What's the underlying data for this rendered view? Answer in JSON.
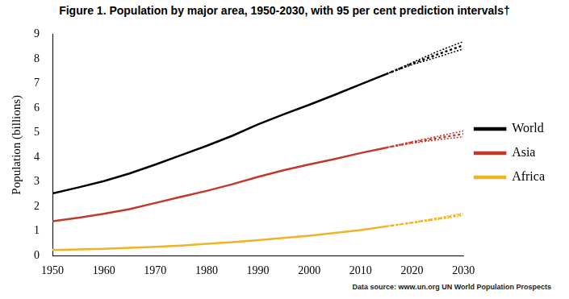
{
  "chart_data": {
    "type": "line",
    "title": "Figure 1. Population by major area, 1950-2030, with 95 per cent prediction intervals†",
    "y_label": "Population (billions)",
    "annotation": "Data source: www.un.org UN World Population Prospects",
    "x": [
      1950,
      1955,
      1960,
      1965,
      1970,
      1975,
      1980,
      1985,
      1990,
      1995,
      2000,
      2005,
      2010,
      2015,
      2020,
      2025,
      2030
    ],
    "series": [
      {
        "name": "World",
        "color": "#000000",
        "values": [
          2.53,
          2.77,
          3.03,
          3.34,
          3.7,
          4.08,
          4.46,
          4.87,
          5.33,
          5.74,
          6.13,
          6.54,
          6.96,
          7.38,
          7.8,
          8.18,
          8.55
        ],
        "lower": [
          null,
          null,
          null,
          null,
          null,
          null,
          null,
          null,
          null,
          null,
          null,
          null,
          null,
          7.38,
          7.76,
          8.07,
          8.4
        ],
        "upper": [
          null,
          null,
          null,
          null,
          null,
          null,
          null,
          null,
          null,
          null,
          null,
          null,
          null,
          7.38,
          7.84,
          8.3,
          8.7
        ]
      },
      {
        "name": "Asia",
        "color": "#c0392b",
        "values": [
          1.4,
          1.54,
          1.7,
          1.89,
          2.14,
          2.39,
          2.63,
          2.9,
          3.2,
          3.47,
          3.71,
          3.93,
          4.17,
          4.39,
          4.6,
          4.78,
          4.95
        ],
        "lower": [
          null,
          null,
          null,
          null,
          null,
          null,
          null,
          null,
          null,
          null,
          null,
          null,
          null,
          4.39,
          4.57,
          4.71,
          4.83
        ],
        "upper": [
          null,
          null,
          null,
          null,
          null,
          null,
          null,
          null,
          null,
          null,
          null,
          null,
          null,
          4.39,
          4.63,
          4.85,
          5.07
        ]
      },
      {
        "name": "Africa",
        "color": "#f0b323",
        "values": [
          0.23,
          0.25,
          0.28,
          0.32,
          0.36,
          0.41,
          0.48,
          0.55,
          0.63,
          0.72,
          0.81,
          0.92,
          1.04,
          1.19,
          1.34,
          1.5,
          1.68
        ],
        "lower": [
          null,
          null,
          null,
          null,
          null,
          null,
          null,
          null,
          null,
          null,
          null,
          null,
          null,
          1.19,
          1.33,
          1.47,
          1.63
        ],
        "upper": [
          null,
          null,
          null,
          null,
          null,
          null,
          null,
          null,
          null,
          null,
          null,
          null,
          null,
          1.19,
          1.35,
          1.53,
          1.73
        ]
      }
    ],
    "xlim": [
      1950,
      2030
    ],
    "xticks": [
      1950,
      1960,
      1970,
      1980,
      1990,
      2000,
      2010,
      2020,
      2030
    ],
    "ylim": [
      0,
      9
    ],
    "yticks": [
      0,
      1,
      2,
      3,
      4,
      5,
      6,
      7,
      8,
      9
    ],
    "grid": false,
    "legend": "right"
  }
}
